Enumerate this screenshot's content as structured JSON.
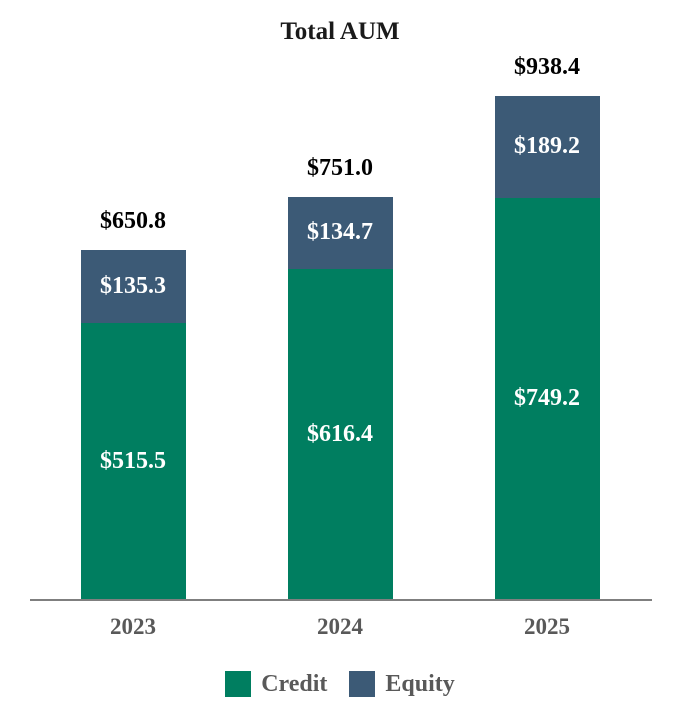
{
  "chart_data": {
    "type": "bar",
    "stacked": true,
    "title": "Total AUM",
    "categories": [
      "2023",
      "2024",
      "2025"
    ],
    "series": [
      {
        "name": "Credit",
        "color": "#007E60",
        "values": [
          515.5,
          616.4,
          749.2
        ],
        "labels": [
          "$515.5",
          "$616.4",
          "$749.2"
        ]
      },
      {
        "name": "Equity",
        "color": "#3C5A76",
        "values": [
          135.3,
          134.7,
          189.2
        ],
        "labels": [
          "$135.3",
          "$134.7",
          "$189.2"
        ]
      }
    ],
    "totals": [
      650.8,
      751.0,
      938.4
    ],
    "total_labels": [
      "$650.8",
      "$751.0",
      "$938.4"
    ],
    "legend": [
      {
        "label": "Credit",
        "color": "#007E60"
      },
      {
        "label": "Equity",
        "color": "#3C5A76"
      }
    ],
    "legend_position": "bottom",
    "grid": false,
    "axis_color": "#7F7F7F",
    "label_colors": {
      "total": "#000000",
      "segment": "#FFFFFF",
      "category": "#595959",
      "legend_text": "#595959"
    }
  }
}
